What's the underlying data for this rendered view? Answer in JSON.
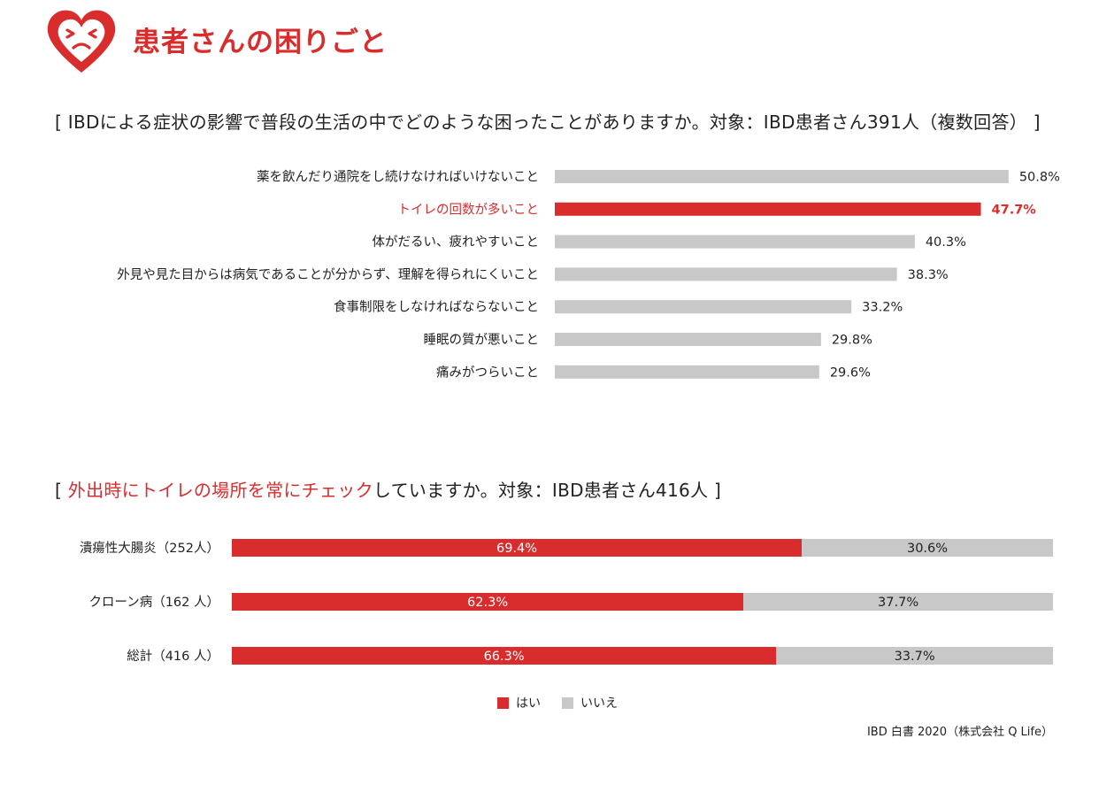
{
  "header": {
    "title": "患者さんの困りごと",
    "logo_icon": "heart-face-icon",
    "accent_color": "#d92d2d"
  },
  "chart_data": [
    {
      "type": "bar",
      "orientation": "horizontal",
      "title_open": "[ ",
      "title": "IBDによる症状の影響で普段の生活の中でどのような困ったことがありますか。対象：IBD患者さん391人（複数回答）",
      "title_close": " ]",
      "categories": [
        "薬を飲んだり通院をし続けなければいけないこと",
        "トイレの回数が多いこと",
        "体がだるい、疲れやすいこと",
        "外見や見た目からは病気であることが分からず、理解を得られにくいこと",
        "食事制限をしなければならないこと",
        "睡眠の質が悪いこと",
        "痛みがつらいこと"
      ],
      "values": [
        50.8,
        47.7,
        40.3,
        38.3,
        33.2,
        29.8,
        29.6
      ],
      "value_labels": [
        "50.8%",
        "47.7%",
        "40.3%",
        "38.3%",
        "33.2%",
        "29.8%",
        "29.6%"
      ],
      "highlight_index": 1,
      "bar_color": "#c8c8c8",
      "highlight_color": "#d92d2d",
      "xlim": [
        0,
        52.5
      ]
    },
    {
      "type": "bar",
      "orientation": "horizontal",
      "stacked": true,
      "title_open": "[ ",
      "title_highlight": "外出時にトイレの場所を常にチェック",
      "title_rest": "していますか。対象：IBD患者さん416人",
      "title_close": " ]",
      "categories": [
        "潰瘍性大腸炎（252人）",
        "クローン病（162 人）",
        "総計（416 人）"
      ],
      "series": [
        {
          "name": "はい",
          "values": [
            69.4,
            62.3,
            66.3
          ],
          "labels": [
            "69.4%",
            "62.3%",
            "66.3%"
          ],
          "color": "#d92d2d"
        },
        {
          "name": "いいえ",
          "values": [
            30.6,
            37.7,
            33.7
          ],
          "labels": [
            "30.6%",
            "37.7%",
            "33.7%"
          ],
          "color": "#c8c8c8"
        }
      ],
      "xlim": [
        0,
        100
      ],
      "legend": "bottom-center"
    }
  ],
  "source": "IBD 白書 2020（株式会社 Q Life）"
}
